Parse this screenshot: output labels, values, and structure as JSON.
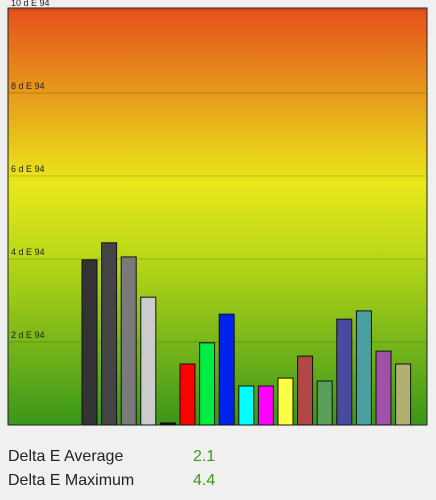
{
  "chart_data": {
    "type": "bar",
    "values": [
      3.98,
      4.39,
      4.05,
      3.08,
      0.05,
      1.47,
      1.98,
      2.67,
      0.94,
      0.94,
      1.13,
      1.66,
      1.06,
      2.55,
      2.75,
      1.78,
      1.47
    ],
    "colors": [
      "#333333",
      "#444444",
      "#7a7a7a",
      "#cccccc",
      "#111111",
      "#ff0000",
      "#00ee44",
      "#0022ee",
      "#00ffff",
      "#ff00ff",
      "#ffff44",
      "#b04848",
      "#5aa05a",
      "#4a4aa0",
      "#4aa0a0",
      "#a050a8",
      "#b0b070"
    ],
    "ylim": [
      0,
      10
    ],
    "yticks": [
      {
        "value": 2,
        "label": "2 d E 94"
      },
      {
        "value": 4,
        "label": "4 d E 94"
      },
      {
        "value": 6,
        "label": "6 d E 94"
      },
      {
        "value": 8,
        "label": "8 d E 94"
      },
      {
        "value": 10,
        "label": "10 d E 94"
      }
    ],
    "grid": true
  },
  "stats": [
    {
      "label": "Delta E Average",
      "value": 2.1
    },
    {
      "label": "Delta E Maximum",
      "value": 4.4
    }
  ]
}
